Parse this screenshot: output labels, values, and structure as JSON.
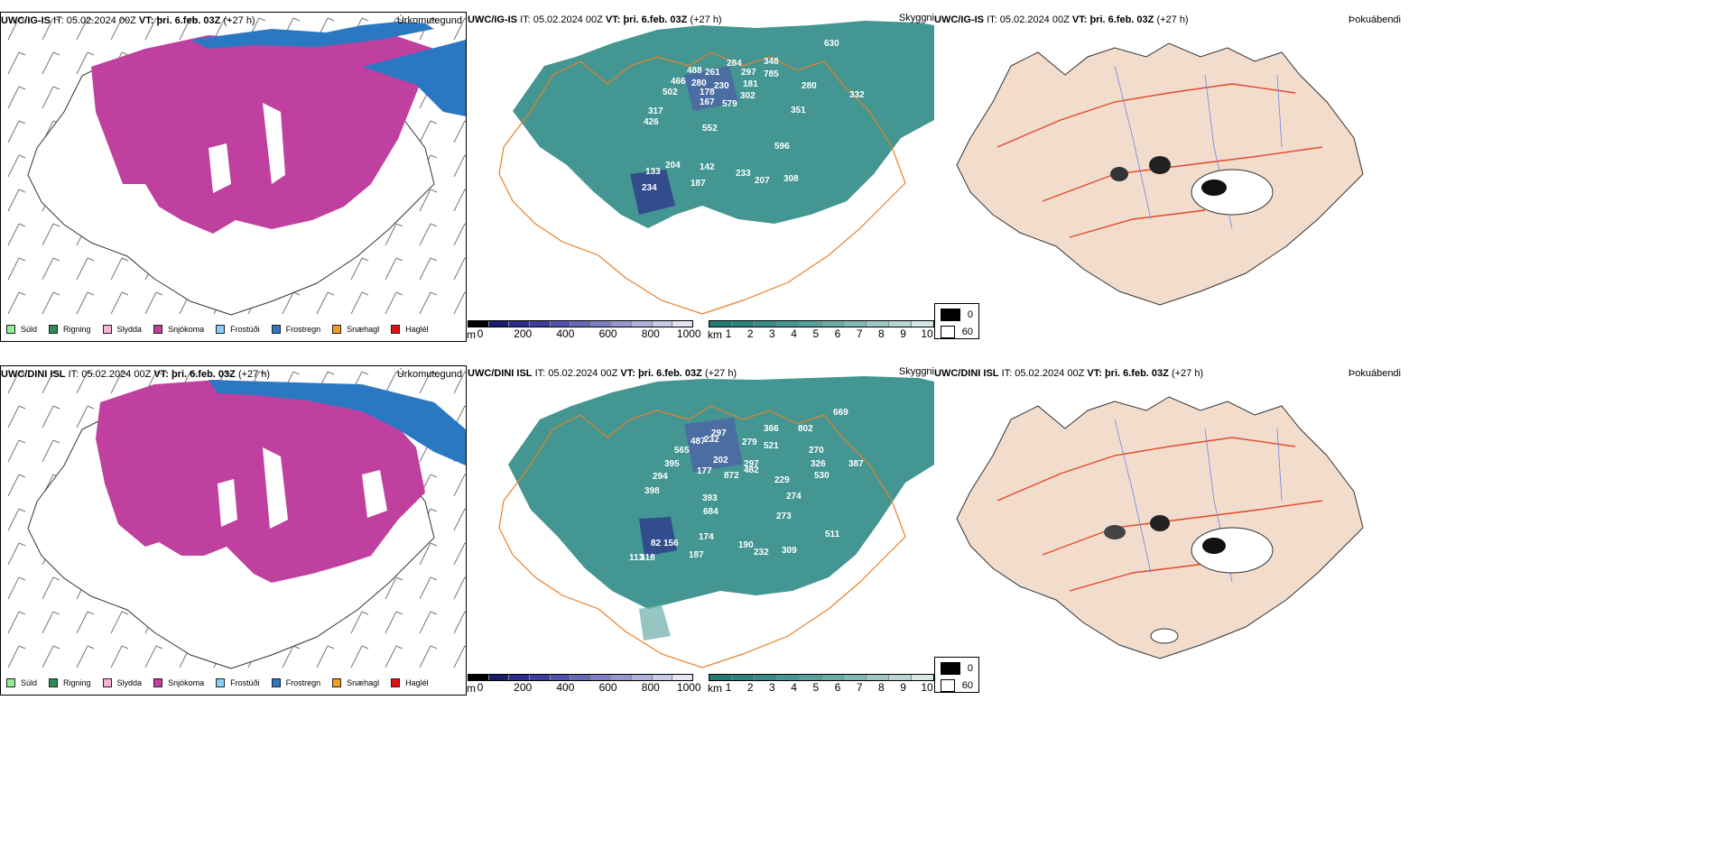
{
  "rows": [
    {
      "model": "UWC/IG-IS",
      "it_label": "IT:",
      "it_value": "05.02.2024 00Z",
      "vt_label": "VT:",
      "vt_value": "þri. 6.feb. 03Z",
      "lead": "(+27 h)",
      "precip_title": "Úrkomutegund",
      "cloud_title": "Skyggni",
      "fog_title": "Þokuábendi",
      "cloud_labels": [
        "630",
        "488",
        "261",
        "284",
        "297",
        "348",
        "785",
        "466",
        "230",
        "280",
        "181",
        "502",
        "178",
        "167",
        "302",
        "579",
        "332",
        "317",
        "280",
        "351",
        "426",
        "552",
        "596",
        "204",
        "142",
        "133",
        "233",
        "207",
        "308",
        "187",
        "234"
      ]
    },
    {
      "model": "UWC/DINI ISL",
      "it_label": "IT:",
      "it_value": "05.02.2024 00Z",
      "vt_label": "VT:",
      "vt_value": "þri. 6.feb. 03Z",
      "lead": "(+27 h)",
      "precip_title": "Úrkomutegund",
      "cloud_title": "Skyggni",
      "fog_title": "Þokuábendi",
      "cloud_labels": [
        "669",
        "297",
        "366",
        "802",
        "565",
        "487",
        "232",
        "279",
        "521",
        "270",
        "395",
        "202",
        "297",
        "326",
        "177",
        "872",
        "482",
        "530",
        "387",
        "294",
        "398",
        "229",
        "393",
        "274",
        "684",
        "273",
        "511",
        "174",
        "82",
        "156",
        "190",
        "232",
        "309",
        "113",
        "318",
        "187"
      ]
    }
  ],
  "precip_legend": [
    {
      "label": "Súld",
      "color": "#90ee90"
    },
    {
      "label": "Rigning",
      "color": "#2e8b57"
    },
    {
      "label": "Slydda",
      "color": "#f7b3d6"
    },
    {
      "label": "Snjókoma",
      "color": "#c040a0"
    },
    {
      "label": "Frostúði",
      "color": "#87cefa"
    },
    {
      "label": "Frostregn",
      "color": "#2b78c2"
    },
    {
      "label": "Snæhagl",
      "color": "#f39b1e"
    },
    {
      "label": "Haglél",
      "color": "#e01010"
    }
  ],
  "elev_bar": {
    "unit": "m",
    "ticks": [
      "0",
      "200",
      "400",
      "600",
      "800",
      "1000"
    ],
    "colors": [
      "#000000",
      "#1b1b6e",
      "#2c2c8c",
      "#3d3d9e",
      "#5151ad",
      "#6868b9",
      "#7f7fc5",
      "#9797d0",
      "#b0b0dc",
      "#cacae8",
      "#e4e4f4"
    ]
  },
  "cloud_bar": {
    "unit": "km",
    "ticks": [
      "1",
      "2",
      "3",
      "4",
      "5",
      "6",
      "7",
      "8",
      "9",
      "10"
    ],
    "colors": [
      "#217a75",
      "#2b837e",
      "#368d88",
      "#449792",
      "#57a29d",
      "#6badaa",
      "#82b9b6",
      "#9cc8c5",
      "#b7d7d5",
      "#d4e8e6"
    ]
  },
  "fog_legend": [
    {
      "label": "0",
      "color": "#000000"
    },
    {
      "label": "60",
      "color": "#ffffff"
    }
  ],
  "colors": {
    "snow": "#c040a0",
    "freezing_rain": "#2b78c2",
    "cloud": "#2f8b85",
    "roads": "#e8802a",
    "fog_land": "#f2dccc",
    "fog_roads": "#e24a2a",
    "rivers": "#6f86e8"
  }
}
